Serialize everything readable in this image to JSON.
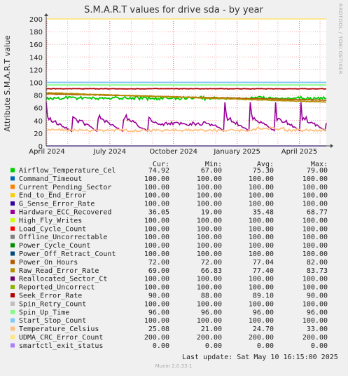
{
  "page": {
    "title": "S.M.A.R.T values for drive sda - by year",
    "side_label": "RRDTOOL / TOBI OETIKER",
    "ylabel": "Attribute S.M.A.R.T value",
    "col_headers": [
      "Cur:",
      "Min:",
      "Avg:",
      "Max:"
    ],
    "last_update": "Last update:  Sat May 10 16:15:00 2025",
    "munin": "Munin 2.0.33-1"
  },
  "chart_data": {
    "type": "line",
    "title": "S.M.A.R.T values for drive sda - by year",
    "ylabel": "Attribute S.M.A.R.T value",
    "ylim": [
      0,
      200
    ],
    "yticks": [
      0,
      20,
      40,
      60,
      80,
      100,
      120,
      140,
      160,
      180,
      200
    ],
    "x_range": [
      "2024-03-31",
      "2025-05-10"
    ],
    "xticks": [
      {
        "label": "April 2024",
        "date": "2024-04-01"
      },
      {
        "label": "July 2024",
        "date": "2024-07-01"
      },
      {
        "label": "October 2024",
        "date": "2024-10-01"
      },
      {
        "label": "January 2025",
        "date": "2025-01-01"
      },
      {
        "label": "April 2025",
        "date": "2025-04-01"
      }
    ],
    "grid": true,
    "series": [
      {
        "name": "Airflow_Temperature_Cel",
        "color": "#00cc00",
        "cur": "74.92",
        "min": "67.00",
        "avg": "75.30",
        "max": "79.00"
      },
      {
        "name": "Command_Timeout",
        "color": "#0066b3",
        "cur": "100.00",
        "min": "100.00",
        "avg": "100.00",
        "max": "100.00"
      },
      {
        "name": "Current_Pending_Sector",
        "color": "#ff8000",
        "cur": "100.00",
        "min": "100.00",
        "avg": "100.00",
        "max": "100.00"
      },
      {
        "name": "End_to_End_Error",
        "color": "#ffcc00",
        "cur": "100.00",
        "min": "100.00",
        "avg": "100.00",
        "max": "100.00"
      },
      {
        "name": "G_Sense_Error_Rate",
        "color": "#330099",
        "cur": "100.00",
        "min": "100.00",
        "avg": "100.00",
        "max": "100.00"
      },
      {
        "name": "Hardware_ECC_Recovered",
        "color": "#990099",
        "cur": "36.05",
        "min": "19.00",
        "avg": "35.48",
        "max": "68.77"
      },
      {
        "name": "High_Fly_Writes",
        "color": "#ccff00",
        "cur": "100.00",
        "min": "100.00",
        "avg": "100.00",
        "max": "100.00"
      },
      {
        "name": "Load_Cycle_Count",
        "color": "#ff0000",
        "cur": "100.00",
        "min": "100.00",
        "avg": "100.00",
        "max": "100.00"
      },
      {
        "name": "Offline_Uncorrectable",
        "color": "#808080",
        "cur": "100.00",
        "min": "100.00",
        "avg": "100.00",
        "max": "100.00"
      },
      {
        "name": "Power_Cycle_Count",
        "color": "#008f00",
        "cur": "100.00",
        "min": "100.00",
        "avg": "100.00",
        "max": "100.00"
      },
      {
        "name": "Power_Off_Retract_Count",
        "color": "#00487d",
        "cur": "100.00",
        "min": "100.00",
        "avg": "100.00",
        "max": "100.00"
      },
      {
        "name": "Power_On_Hours",
        "color": "#b35a00",
        "cur": "72.00",
        "min": "72.00",
        "avg": "77.04",
        "max": "82.00"
      },
      {
        "name": "Raw_Read_Error_Rate",
        "color": "#b38f00",
        "cur": "69.00",
        "min": "66.83",
        "avg": "77.40",
        "max": "83.73"
      },
      {
        "name": "Reallocated_Sector_Ct",
        "color": "#6b006b",
        "cur": "100.00",
        "min": "100.00",
        "avg": "100.00",
        "max": "100.00"
      },
      {
        "name": "Reported_Uncorrect",
        "color": "#8fb300",
        "cur": "100.00",
        "min": "100.00",
        "avg": "100.00",
        "max": "100.00"
      },
      {
        "name": "Seek_Error_Rate",
        "color": "#b30000",
        "cur": "90.00",
        "min": "88.00",
        "avg": "89.10",
        "max": "90.00"
      },
      {
        "name": "Spin_Retry_Count",
        "color": "#bebebe",
        "cur": "100.00",
        "min": "100.00",
        "avg": "100.00",
        "max": "100.00"
      },
      {
        "name": "Spin_Up_Time",
        "color": "#80ff80",
        "cur": "96.00",
        "min": "96.00",
        "avg": "96.00",
        "max": "96.00"
      },
      {
        "name": "Start_Stop_Count",
        "color": "#80c9ff",
        "cur": "100.00",
        "min": "100.00",
        "avg": "100.00",
        "max": "100.00"
      },
      {
        "name": "Temperature_Celsius",
        "color": "#ffc080",
        "cur": "25.08",
        "min": "21.00",
        "avg": "24.70",
        "max": "33.00"
      },
      {
        "name": "UDMA_CRC_Error_Count",
        "color": "#ffe680",
        "cur": "200.00",
        "min": "200.00",
        "avg": "200.00",
        "max": "200.00"
      },
      {
        "name": "smartctl_exit_status",
        "color": "#aa80ff",
        "cur": "0.00",
        "min": "0.00",
        "avg": "0.00",
        "max": "0.00"
      }
    ]
  }
}
